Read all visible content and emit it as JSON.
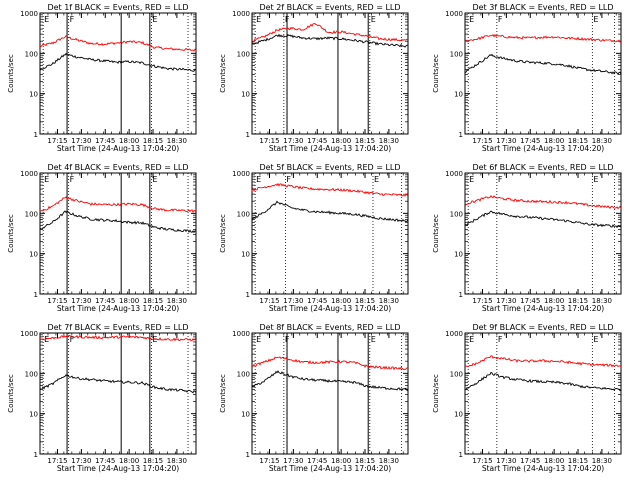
{
  "chart_data": [
    {
      "type": "line",
      "title": "Det 1f BLACK = Events, RED = LLD",
      "xlabel": "Start Time (24-Aug-13 17:04:20)",
      "ylabel": "Counts/sec",
      "xlim": [
        "17:04",
        "18:42"
      ],
      "ylim": [
        1,
        1000
      ],
      "y_scale": "log",
      "x_ticks": [
        "17:15",
        "17:30",
        "17:45",
        "18:00",
        "18:15",
        "18:30"
      ],
      "y_ticks": [
        "1",
        "10",
        "100",
        "1000"
      ],
      "markers": {
        "lines": [
          "17:21",
          "17:55",
          "18:13"
        ],
        "dotted": [
          "17:06",
          "17:22",
          "18:14",
          "18:37"
        ],
        "labels": [
          {
            "text": "E",
            "x": "17:06"
          },
          {
            "text": "F",
            "x": "17:22"
          },
          {
            "text": "E",
            "x": "18:14"
          }
        ]
      },
      "series": [
        {
          "color": "#ff0000",
          "x": [
            "17:04",
            "17:12",
            "17:20",
            "17:28",
            "17:36",
            "17:44",
            "17:52",
            "18:00",
            "18:08",
            "18:16",
            "18:24",
            "18:32",
            "18:40"
          ],
          "values": [
            150,
            180,
            260,
            210,
            175,
            170,
            180,
            195,
            185,
            140,
            130,
            125,
            120
          ]
        },
        {
          "color": "#000000",
          "x": [
            "17:04",
            "17:12",
            "17:20",
            "17:28",
            "17:36",
            "17:44",
            "17:52",
            "18:00",
            "18:08",
            "18:16",
            "18:24",
            "18:32",
            "18:40"
          ],
          "values": [
            40,
            55,
            95,
            80,
            70,
            65,
            60,
            62,
            58,
            48,
            42,
            40,
            38
          ]
        }
      ]
    },
    {
      "type": "line",
      "title": "Det 2f BLACK = Events, RED = LLD",
      "xlabel": "Start Time (24-Aug-13 17:04:20)",
      "ylabel": "Counts/sec",
      "xlim": [
        "17:04",
        "18:42"
      ],
      "ylim": [
        1,
        1000
      ],
      "y_scale": "log",
      "x_ticks": [
        "17:15",
        "17:30",
        "17:45",
        "18:00",
        "18:15",
        "18:30"
      ],
      "y_ticks": [
        "1",
        "10",
        "100",
        "1000"
      ],
      "markers": {
        "lines": [
          "17:26",
          "17:58",
          "18:17"
        ],
        "dotted": [
          "17:06",
          "17:24",
          "18:18",
          "18:38"
        ],
        "labels": [
          {
            "text": "E",
            "x": "17:06"
          },
          {
            "text": "F",
            "x": "17:24"
          },
          {
            "text": "E",
            "x": "18:18"
          }
        ]
      },
      "series": [
        {
          "color": "#ff0000",
          "x": [
            "17:04",
            "17:12",
            "17:20",
            "17:28",
            "17:36",
            "17:44",
            "17:52",
            "18:00",
            "18:08",
            "18:16",
            "18:24",
            "18:32",
            "18:40"
          ],
          "values": [
            200,
            260,
            380,
            420,
            390,
            560,
            330,
            340,
            300,
            270,
            230,
            220,
            210
          ]
        },
        {
          "color": "#000000",
          "x": [
            "17:04",
            "17:12",
            "17:20",
            "17:28",
            "17:36",
            "17:44",
            "17:52",
            "18:00",
            "18:08",
            "18:16",
            "18:24",
            "18:32",
            "18:40"
          ],
          "values": [
            170,
            210,
            280,
            270,
            240,
            230,
            240,
            230,
            210,
            190,
            170,
            160,
            150
          ]
        }
      ]
    },
    {
      "type": "line",
      "title": "Det 3f BLACK = Events, RED = LLD",
      "xlabel": "Start Time (24-Aug-13 17:04:20)",
      "ylabel": "Counts/sec",
      "xlim": [
        "17:04",
        "18:42"
      ],
      "ylim": [
        1,
        1000
      ],
      "y_scale": "log",
      "x_ticks": [
        "17:15",
        "17:30",
        "17:45",
        "18:00",
        "18:15",
        "18:30"
      ],
      "y_ticks": [
        "1",
        "10",
        "100",
        "1000"
      ],
      "markers": {
        "lines": [],
        "dotted": [
          "17:06",
          "17:24",
          "18:24",
          "18:38"
        ],
        "labels": [
          {
            "text": "E",
            "x": "17:06"
          },
          {
            "text": "F",
            "x": "17:24"
          },
          {
            "text": "E",
            "x": "18:24"
          }
        ]
      },
      "series": [
        {
          "color": "#ff0000",
          "x": [
            "17:04",
            "17:12",
            "17:20",
            "17:28",
            "17:36",
            "17:44",
            "17:52",
            "18:00",
            "18:08",
            "18:16",
            "18:24",
            "18:32",
            "18:40"
          ],
          "values": [
            200,
            230,
            280,
            260,
            245,
            240,
            250,
            255,
            240,
            230,
            220,
            210,
            205
          ]
        },
        {
          "color": "#000000",
          "x": [
            "17:04",
            "17:12",
            "17:20",
            "17:28",
            "17:36",
            "17:44",
            "17:52",
            "18:00",
            "18:08",
            "18:16",
            "18:24",
            "18:32",
            "18:40"
          ],
          "values": [
            35,
            55,
            90,
            75,
            65,
            60,
            58,
            55,
            50,
            42,
            38,
            35,
            32
          ]
        }
      ]
    },
    {
      "type": "line",
      "title": "Det 4f BLACK = Events, RED = LLD",
      "xlabel": "Start Time (24-Aug-13 17:04:20)",
      "ylabel": "Counts/sec",
      "xlim": [
        "17:04",
        "18:42"
      ],
      "ylim": [
        1,
        1000
      ],
      "y_scale": "log",
      "x_ticks": [
        "17:15",
        "17:30",
        "17:45",
        "18:00",
        "18:15",
        "18:30"
      ],
      "y_ticks": [
        "1",
        "10",
        "100",
        "1000"
      ],
      "markers": {
        "lines": [
          "17:21",
          "17:55",
          "18:13"
        ],
        "dotted": [
          "17:06",
          "17:22",
          "18:14",
          "18:37"
        ],
        "labels": [
          {
            "text": "E",
            "x": "17:06"
          },
          {
            "text": "F",
            "x": "17:22"
          },
          {
            "text": "E",
            "x": "18:14"
          }
        ]
      },
      "series": [
        {
          "color": "#ff0000",
          "x": [
            "17:04",
            "17:12",
            "17:20",
            "17:28",
            "17:36",
            "17:44",
            "17:52",
            "18:00",
            "18:08",
            "18:16",
            "18:24",
            "18:32",
            "18:40"
          ],
          "values": [
            110,
            150,
            250,
            200,
            170,
            165,
            165,
            170,
            165,
            130,
            120,
            118,
            115
          ]
        },
        {
          "color": "#000000",
          "x": [
            "17:04",
            "17:12",
            "17:20",
            "17:28",
            "17:36",
            "17:44",
            "17:52",
            "18:00",
            "18:08",
            "18:16",
            "18:24",
            "18:32",
            "18:40"
          ],
          "values": [
            40,
            60,
            110,
            85,
            72,
            68,
            65,
            60,
            58,
            45,
            40,
            38,
            36
          ]
        }
      ]
    },
    {
      "type": "line",
      "title": "Det 5f BLACK = Events, RED = LLD",
      "xlabel": "Start Time (24-Aug-13 17:04:20)",
      "ylabel": "Counts/sec",
      "xlim": [
        "17:04",
        "18:42"
      ],
      "ylim": [
        1,
        1000
      ],
      "y_scale": "log",
      "x_ticks": [
        "17:15",
        "17:30",
        "17:45",
        "18:00",
        "18:15",
        "18:30"
      ],
      "y_ticks": [
        "1",
        "10",
        "100",
        "1000"
      ],
      "markers": {
        "lines": [],
        "dotted": [
          "17:06",
          "17:25",
          "18:20",
          "18:38"
        ],
        "labels": [
          {
            "text": "E",
            "x": "17:06"
          },
          {
            "text": "F",
            "x": "17:25"
          },
          {
            "text": "E",
            "x": "18:20"
          }
        ]
      },
      "series": [
        {
          "color": "#ff0000",
          "x": [
            "17:04",
            "17:12",
            "17:20",
            "17:28",
            "17:36",
            "17:44",
            "17:52",
            "18:00",
            "18:08",
            "18:16",
            "18:24",
            "18:32",
            "18:40"
          ],
          "values": [
            380,
            450,
            520,
            470,
            420,
            400,
            390,
            380,
            360,
            330,
            300,
            290,
            280
          ]
        },
        {
          "color": "#000000",
          "x": [
            "17:04",
            "17:12",
            "17:20",
            "17:28",
            "17:36",
            "17:44",
            "17:52",
            "18:00",
            "18:08",
            "18:16",
            "18:24",
            "18:32",
            "18:40"
          ],
          "values": [
            70,
            110,
            190,
            140,
            120,
            110,
            105,
            100,
            95,
            85,
            75,
            70,
            65
          ]
        }
      ]
    },
    {
      "type": "line",
      "title": "Det 6f BLACK = Events, RED = LLD",
      "xlabel": "Start Time (24-Aug-13 17:04:20)",
      "ylabel": "Counts/sec",
      "xlim": [
        "17:04",
        "18:42"
      ],
      "ylim": [
        1,
        1000
      ],
      "y_scale": "log",
      "x_ticks": [
        "17:15",
        "17:30",
        "17:45",
        "18:00",
        "18:15",
        "18:30"
      ],
      "y_ticks": [
        "1",
        "10",
        "100",
        "1000"
      ],
      "markers": {
        "lines": [],
        "dotted": [
          "17:06",
          "17:24",
          "18:24",
          "18:38"
        ],
        "labels": [
          {
            "text": "E",
            "x": "17:06"
          },
          {
            "text": "F",
            "x": "17:24"
          },
          {
            "text": "E",
            "x": "18:24"
          }
        ]
      },
      "series": [
        {
          "color": "#ff0000",
          "x": [
            "17:04",
            "17:12",
            "17:20",
            "17:28",
            "17:36",
            "17:44",
            "17:52",
            "18:00",
            "18:08",
            "18:16",
            "18:24",
            "18:32",
            "18:40"
          ],
          "values": [
            170,
            210,
            260,
            230,
            210,
            200,
            195,
            190,
            185,
            170,
            155,
            145,
            140
          ]
        },
        {
          "color": "#000000",
          "x": [
            "17:04",
            "17:12",
            "17:20",
            "17:28",
            "17:36",
            "17:44",
            "17:52",
            "18:00",
            "18:08",
            "18:16",
            "18:24",
            "18:32",
            "18:40"
          ],
          "values": [
            50,
            75,
            110,
            95,
            85,
            80,
            75,
            70,
            65,
            58,
            52,
            50,
            48
          ]
        }
      ]
    },
    {
      "type": "line",
      "title": "Det 7f BLACK = Events, RED = LLD",
      "xlabel": "Start Time (24-Aug-13 17:04:20)",
      "ylabel": "Counts/sec",
      "xlim": [
        "17:04",
        "18:42"
      ],
      "ylim": [
        1,
        1000
      ],
      "y_scale": "log",
      "x_ticks": [
        "17:15",
        "17:30",
        "17:45",
        "18:00",
        "18:15",
        "18:30"
      ],
      "y_ticks": [
        "1",
        "10",
        "100",
        "1000"
      ],
      "markers": {
        "lines": [
          "17:21",
          "17:55",
          "18:13"
        ],
        "dotted": [
          "17:06",
          "17:22",
          "18:14",
          "18:37"
        ],
        "labels": [
          {
            "text": "E",
            "x": "17:06"
          },
          {
            "text": "F",
            "x": "17:22"
          },
          {
            "text": "E",
            "x": "18:14"
          }
        ]
      },
      "series": [
        {
          "color": "#ff0000",
          "x": [
            "17:04",
            "17:12",
            "17:20",
            "17:28",
            "17:36",
            "17:44",
            "17:52",
            "18:00",
            "18:08",
            "18:16",
            "18:24",
            "18:32",
            "18:40"
          ],
          "values": [
            700,
            750,
            820,
            800,
            780,
            770,
            790,
            800,
            780,
            720,
            700,
            690,
            680
          ]
        },
        {
          "color": "#000000",
          "x": [
            "17:04",
            "17:12",
            "17:20",
            "17:28",
            "17:36",
            "17:44",
            "17:52",
            "18:00",
            "18:08",
            "18:16",
            "18:24",
            "18:32",
            "18:40"
          ],
          "values": [
            40,
            55,
            90,
            75,
            70,
            65,
            62,
            60,
            58,
            45,
            40,
            38,
            35
          ]
        }
      ]
    },
    {
      "type": "line",
      "title": "Det 8f BLACK = Events, RED = LLD",
      "xlabel": "Start Time (24-Aug-13 17:04:20)",
      "ylabel": "Counts/sec",
      "xlim": [
        "17:04",
        "18:42"
      ],
      "ylim": [
        1,
        1000
      ],
      "y_scale": "log",
      "x_ticks": [
        "17:15",
        "17:30",
        "17:45",
        "18:00",
        "18:15",
        "18:30"
      ],
      "y_ticks": [
        "1",
        "10",
        "100",
        "1000"
      ],
      "markers": {
        "lines": [
          "17:26",
          "17:58",
          "18:17"
        ],
        "dotted": [
          "17:06",
          "17:24",
          "18:18",
          "18:38"
        ],
        "labels": [
          {
            "text": "E",
            "x": "17:06"
          },
          {
            "text": "F",
            "x": "17:24"
          },
          {
            "text": "E",
            "x": "18:18"
          }
        ]
      },
      "series": [
        {
          "color": "#ff0000",
          "x": [
            "17:04",
            "17:12",
            "17:20",
            "17:28",
            "17:36",
            "17:44",
            "17:52",
            "18:00",
            "18:08",
            "18:16",
            "18:24",
            "18:32",
            "18:40"
          ],
          "values": [
            150,
            190,
            250,
            220,
            190,
            185,
            190,
            195,
            185,
            150,
            140,
            135,
            130
          ]
        },
        {
          "color": "#000000",
          "x": [
            "17:04",
            "17:12",
            "17:20",
            "17:28",
            "17:36",
            "17:44",
            "17:52",
            "18:00",
            "18:08",
            "18:16",
            "18:24",
            "18:32",
            "18:40"
          ],
          "values": [
            45,
            65,
            110,
            85,
            72,
            68,
            65,
            62,
            60,
            48,
            44,
            42,
            40
          ]
        }
      ]
    },
    {
      "type": "line",
      "title": "Det 9f BLACK = Events, RED = LLD",
      "xlabel": "Start Time (24-Aug-13 17:04:20)",
      "ylabel": "Counts/sec",
      "xlim": [
        "17:04",
        "18:42"
      ],
      "ylim": [
        1,
        1000
      ],
      "y_scale": "log",
      "x_ticks": [
        "17:15",
        "17:30",
        "17:45",
        "18:00",
        "18:15",
        "18:30"
      ],
      "y_ticks": [
        "1",
        "10",
        "100",
        "1000"
      ],
      "markers": {
        "lines": [],
        "dotted": [
          "17:06",
          "17:24",
          "18:24",
          "18:38"
        ],
        "labels": [
          {
            "text": "E",
            "x": "17:06"
          },
          {
            "text": "F",
            "x": "17:24"
          },
          {
            "text": "E",
            "x": "18:24"
          }
        ]
      },
      "series": [
        {
          "color": "#ff0000",
          "x": [
            "17:04",
            "17:12",
            "17:20",
            "17:28",
            "17:36",
            "17:44",
            "17:52",
            "18:00",
            "18:08",
            "18:16",
            "18:24",
            "18:32",
            "18:40"
          ],
          "values": [
            140,
            180,
            260,
            230,
            205,
            200,
            205,
            200,
            190,
            175,
            165,
            160,
            155
          ]
        },
        {
          "color": "#000000",
          "x": [
            "17:04",
            "17:12",
            "17:20",
            "17:28",
            "17:36",
            "17:44",
            "17:52",
            "18:00",
            "18:08",
            "18:16",
            "18:24",
            "18:32",
            "18:40"
          ],
          "values": [
            40,
            60,
            100,
            80,
            70,
            65,
            62,
            60,
            56,
            48,
            44,
            42,
            40
          ]
        }
      ]
    }
  ]
}
